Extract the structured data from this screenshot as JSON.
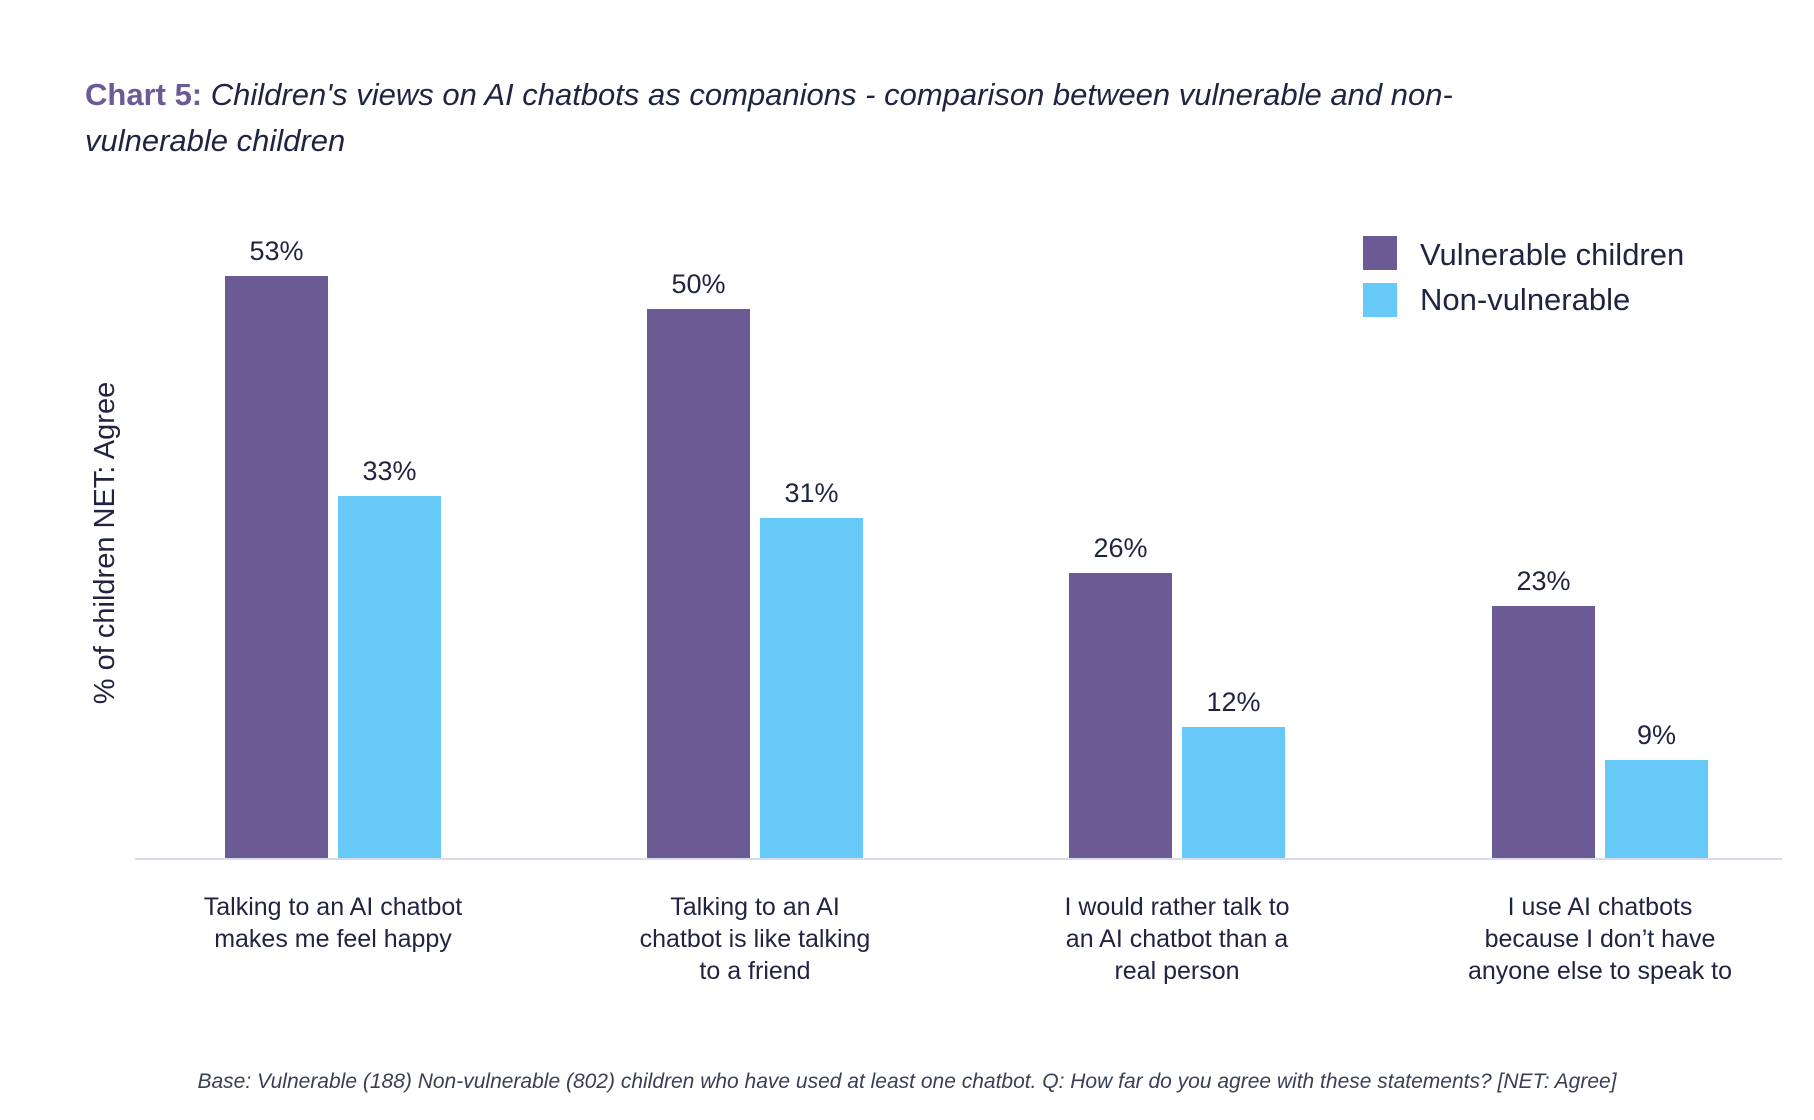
{
  "title": {
    "prefix": "Chart 5:",
    "text": "Children's views on AI chatbots as companions - comparison between vulnerable and non-vulnerable children"
  },
  "footnote": "Base: Vulnerable (188) Non-vulnerable (802) children who have used at least one chatbot. Q: How far do you agree with these statements? [NET: Agree]",
  "colors": {
    "vulnerable": "#6b5a94",
    "non_vulnerable": "#67c9f8",
    "baseline": "#d6dcea"
  },
  "chart_data": {
    "type": "bar",
    "title": "Children's views on AI chatbots as companions - comparison between vulnerable and non-vulnerable children",
    "ylabel": "% of children NET: Agree",
    "xlabel": "",
    "ylim": [
      0,
      60
    ],
    "grid": false,
    "legend_position": "top-right",
    "categories": [
      [
        "Talking to an AI chatbot",
        "makes me feel happy"
      ],
      [
        "Talking to an AI",
        "chatbot is like talking",
        "to a friend"
      ],
      [
        "I would rather talk to",
        "an AI chatbot than a",
        "real person"
      ],
      [
        "I use AI chatbots",
        "because I don’t have",
        "anyone else to speak to"
      ]
    ],
    "series": [
      {
        "name": "Vulnerable children",
        "values": [
          53,
          50,
          26,
          23
        ],
        "labels": [
          "53%",
          "50%",
          "26%",
          "23%"
        ]
      },
      {
        "name": "Non-vulnerable",
        "values": [
          33,
          31,
          12,
          9
        ],
        "labels": [
          "33%",
          "31%",
          "12%",
          "9%"
        ]
      }
    ]
  }
}
